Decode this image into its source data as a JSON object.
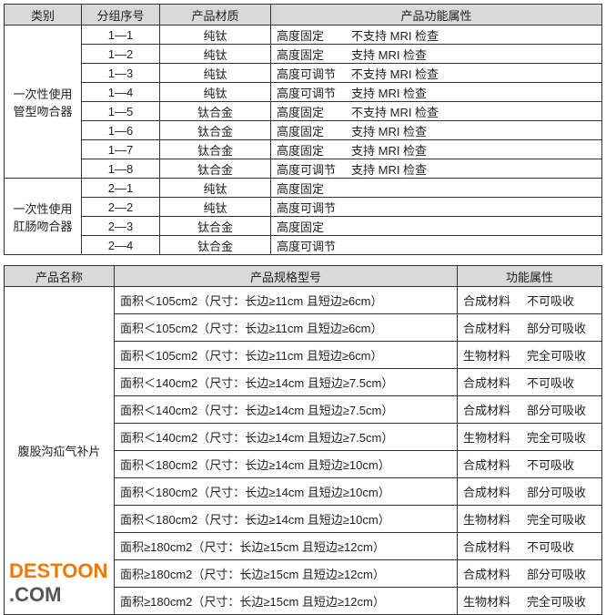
{
  "table1": {
    "headers": [
      "类别",
      "分组序号",
      "产品材质",
      "产品功能属性"
    ],
    "groups": [
      {
        "category": "一次性使用管型吻合器",
        "rows": [
          {
            "id": "1—1",
            "material": "纯钛",
            "height": "高度固定",
            "mri": "不支持 MRI 检查"
          },
          {
            "id": "1—2",
            "material": "纯钛",
            "height": "高度固定",
            "mri": "支持 MRI 检查"
          },
          {
            "id": "1—3",
            "material": "纯钛",
            "height": "高度可调节",
            "mri": "不支持 MRI 检查"
          },
          {
            "id": "1—4",
            "material": "纯钛",
            "height": "高度可调节",
            "mri": "支持 MRI 检查"
          },
          {
            "id": "1—5",
            "material": "钛合金",
            "height": "高度固定",
            "mri": "不支持 MRI 检查"
          },
          {
            "id": "1—6",
            "material": "钛合金",
            "height": "高度固定",
            "mri": "支持 MRI 检查"
          },
          {
            "id": "1—7",
            "material": "钛合金",
            "height": "高度固定",
            "mri": "支持 MRI 检查"
          },
          {
            "id": "1—8",
            "material": "钛合金",
            "height": "高度可调节",
            "mri": "支持 MRI 检查"
          }
        ]
      },
      {
        "category": "一次性使用肛肠吻合器",
        "rows": [
          {
            "id": "2—1",
            "material": "纯钛",
            "height": "高度固定",
            "mri": ""
          },
          {
            "id": "2—2",
            "material": "纯钛",
            "height": "高度可调节",
            "mri": ""
          },
          {
            "id": "2—3",
            "material": "钛合金",
            "height": "高度固定",
            "mri": ""
          },
          {
            "id": "2—4",
            "material": "钛合金",
            "height": "高度可调节",
            "mri": ""
          }
        ]
      }
    ]
  },
  "table2": {
    "headers": [
      "产品名称",
      "产品规格型号",
      "功能属性"
    ],
    "product": "腹股沟疝气补片",
    "rows": [
      {
        "spec": "面积＜105cm2（尺寸：长边≥11cm 且短边≥6cm）",
        "material": "合成材料",
        "absorb": "不可吸收"
      },
      {
        "spec": "面积＜105cm2（尺寸：长边≥11cm 且短边≥6cm）",
        "material": "合成材料",
        "absorb": "部分可吸收"
      },
      {
        "spec": "面积＜105cm2（尺寸：长边≥11cm 且短边≥6cm）",
        "material": "生物材料",
        "absorb": "完全可吸收"
      },
      {
        "spec": "面积＜140cm2（尺寸：长边≥14cm 且短边≥7.5cm）",
        "material": "合成材料",
        "absorb": "不可吸收"
      },
      {
        "spec": "面积＜140cm2（尺寸：长边≥14cm 且短边≥7.5cm）",
        "material": "合成材料",
        "absorb": "部分可吸收"
      },
      {
        "spec": "面积＜140cm2（尺寸：长边≥14cm 且短边≥7.5cm）",
        "material": "生物材料",
        "absorb": "完全可吸收"
      },
      {
        "spec": "面积＜180cm2（尺寸：长边≥14cm 且短边≥10cm）",
        "material": "合成材料",
        "absorb": "不可吸收"
      },
      {
        "spec": "面积＜180cm2（尺寸：长边≥14cm 且短边≥10cm）",
        "material": "合成材料",
        "absorb": "部分可吸收"
      },
      {
        "spec": "面积＜180cm2（尺寸：长边≥14cm 且短边≥10cm）",
        "material": "生物材料",
        "absorb": "完全可吸收"
      },
      {
        "spec": "面积≥180cm2（尺寸：长边≥15cm 且短边≥12cm）",
        "material": "合成材料",
        "absorb": "不可吸收"
      },
      {
        "spec": "面积≥180cm2（尺寸：长边≥15cm 且短边≥12cm）",
        "material": "合成材料",
        "absorb": "部分可吸收"
      },
      {
        "spec": "面积≥180cm2（尺寸：长边≥15cm 且短边≥12cm）",
        "material": "生物材料",
        "absorb": "完全可吸收"
      }
    ]
  },
  "watermark": {
    "logo_a": "DESTOON",
    "logo_b": ".COM"
  }
}
